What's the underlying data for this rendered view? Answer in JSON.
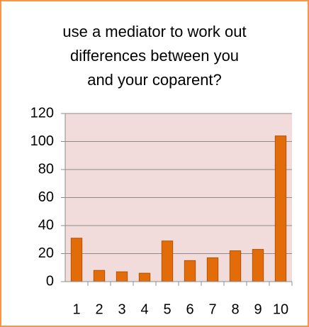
{
  "chart_data": {
    "type": "bar",
    "title": [
      "use a mediator to work out",
      "differences between you",
      "and your coparent?"
    ],
    "categories": [
      "1",
      "2",
      "3",
      "4",
      "5",
      "6",
      "7",
      "8",
      "9",
      "10"
    ],
    "values": [
      31,
      8,
      7,
      6,
      29,
      15,
      17,
      22,
      23,
      104
    ],
    "color": "#e36c0a",
    "ylim": [
      0,
      120
    ],
    "yticks": [
      0,
      20,
      40,
      60,
      80,
      100,
      120
    ],
    "grid": true
  }
}
